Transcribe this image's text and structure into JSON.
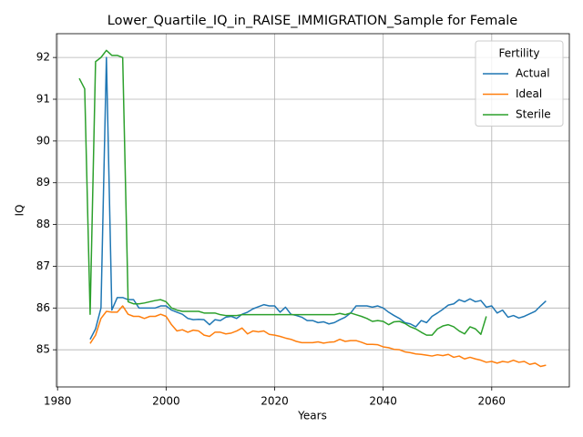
{
  "chart_data": {
    "type": "line",
    "title": "Lower_Quartile_IQ_in_RAISE_IMMIGRATION_Sample for Female",
    "x_label": "Years",
    "y_label": "IQ",
    "x": [
      1984,
      1985,
      1986,
      1987,
      1988,
      1989,
      1990,
      1991,
      1992,
      1993,
      1994,
      1995,
      1996,
      1997,
      1998,
      1999,
      2000,
      2001,
      2002,
      2003,
      2004,
      2005,
      2006,
      2007,
      2008,
      2009,
      2010,
      2011,
      2012,
      2013,
      2014,
      2015,
      2016,
      2017,
      2018,
      2019,
      2020,
      2021,
      2022,
      2023,
      2024,
      2025,
      2026,
      2027,
      2028,
      2029,
      2030,
      2031,
      2032,
      2033,
      2034,
      2035,
      2036,
      2037,
      2038,
      2039,
      2040,
      2041,
      2042,
      2043,
      2044,
      2045,
      2046,
      2047,
      2048,
      2049,
      2050,
      2051,
      2052,
      2053,
      2054,
      2055,
      2056,
      2057,
      2058,
      2059,
      2060,
      2061,
      2062,
      2063,
      2064,
      2065,
      2066,
      2067,
      2068,
      2069,
      2070
    ],
    "series": [
      {
        "name": "Actual",
        "color": "#1f77b4",
        "values": [
          null,
          null,
          85.25,
          85.5,
          86.0,
          92.0,
          85.95,
          86.25,
          86.25,
          86.2,
          86.2,
          86.0,
          86.0,
          86.0,
          86.0,
          86.05,
          86.05,
          85.95,
          85.9,
          85.85,
          85.75,
          85.72,
          85.73,
          85.72,
          85.6,
          85.72,
          85.7,
          85.78,
          85.8,
          85.75,
          85.85,
          85.9,
          85.98,
          86.03,
          86.08,
          86.05,
          86.05,
          85.9,
          86.02,
          85.85,
          85.82,
          85.78,
          85.7,
          85.7,
          85.65,
          85.67,
          85.62,
          85.65,
          85.72,
          85.78,
          85.88,
          86.05,
          86.05,
          86.05,
          86.02,
          86.05,
          86.0,
          85.9,
          85.82,
          85.75,
          85.65,
          85.62,
          85.55,
          85.7,
          85.65,
          85.8,
          85.88,
          85.97,
          86.07,
          86.1,
          86.2,
          86.15,
          86.22,
          86.15,
          86.18,
          86.02,
          86.05,
          85.88,
          85.95,
          85.78,
          85.82,
          85.76,
          85.8,
          85.86,
          85.92,
          86.05,
          86.17
        ]
      },
      {
        "name": "Ideal",
        "color": "#ff7f0e",
        "values": [
          null,
          null,
          85.15,
          85.35,
          85.75,
          85.92,
          85.9,
          85.9,
          86.05,
          85.85,
          85.8,
          85.8,
          85.75,
          85.8,
          85.8,
          85.85,
          85.8,
          85.6,
          85.45,
          85.48,
          85.42,
          85.47,
          85.45,
          85.35,
          85.32,
          85.42,
          85.42,
          85.38,
          85.4,
          85.45,
          85.52,
          85.38,
          85.45,
          85.43,
          85.45,
          85.37,
          85.35,
          85.32,
          85.28,
          85.25,
          85.2,
          85.17,
          85.17,
          85.17,
          85.19,
          85.16,
          85.18,
          85.19,
          85.25,
          85.2,
          85.22,
          85.22,
          85.18,
          85.13,
          85.13,
          85.12,
          85.07,
          85.05,
          85.01,
          85.0,
          84.95,
          84.93,
          84.9,
          84.89,
          84.87,
          84.85,
          84.88,
          84.86,
          84.89,
          84.82,
          84.85,
          84.78,
          84.82,
          84.78,
          84.75,
          84.7,
          84.72,
          84.68,
          84.72,
          84.7,
          84.75,
          84.7,
          84.72,
          84.65,
          84.68,
          84.6,
          84.63
        ]
      },
      {
        "name": "Sterile",
        "color": "#2ca02c",
        "values": [
          91.5,
          91.25,
          85.85,
          91.9,
          92.0,
          92.17,
          92.05,
          92.05,
          92.0,
          86.15,
          86.1,
          86.1,
          86.12,
          86.15,
          86.18,
          86.2,
          86.15,
          86.0,
          85.95,
          85.92,
          85.92,
          85.92,
          85.92,
          85.88,
          85.88,
          85.88,
          85.84,
          85.82,
          85.82,
          85.82,
          85.84,
          85.84,
          85.84,
          85.84,
          85.84,
          85.84,
          85.84,
          85.84,
          85.84,
          85.84,
          85.84,
          85.84,
          85.84,
          85.84,
          85.84,
          85.84,
          85.84,
          85.84,
          85.87,
          85.84,
          85.88,
          85.84,
          85.8,
          85.75,
          85.68,
          85.7,
          85.68,
          85.6,
          85.67,
          85.68,
          85.63,
          85.55,
          85.5,
          85.42,
          85.35,
          85.35,
          85.5,
          85.57,
          85.6,
          85.55,
          85.45,
          85.38,
          85.55,
          85.5,
          85.37,
          85.8,
          null,
          null,
          null,
          null,
          null,
          null,
          null,
          null,
          null,
          null,
          null
        ]
      }
    ],
    "xlim": [
      1979.8,
      2074.3
    ],
    "ylim": [
      84.11,
      92.57
    ],
    "xticks": [
      1980,
      2000,
      2020,
      2040,
      2060
    ],
    "yticks": [
      85,
      86,
      87,
      88,
      89,
      90,
      91,
      92
    ],
    "grid": true,
    "legend_title": "Fertility",
    "legend_position": "upper right"
  }
}
